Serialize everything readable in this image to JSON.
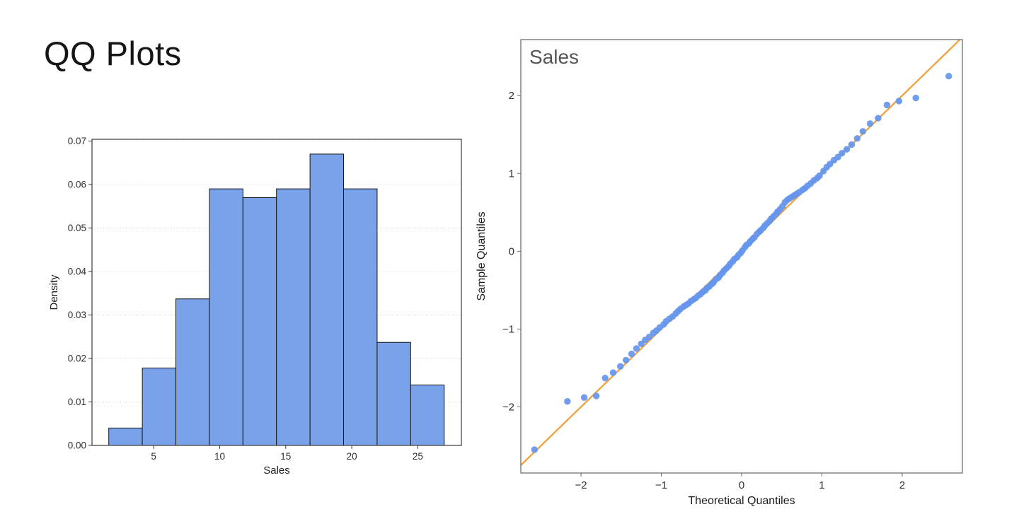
{
  "title": "QQ Plots",
  "chart_data": [
    {
      "type": "bar",
      "name": "sales-density-histogram",
      "xlabel": "Sales",
      "ylabel": "Density",
      "xlim": [
        0.33,
        28.3
      ],
      "ylim": [
        0,
        0.0704
      ],
      "xticks": [
        5,
        10,
        15,
        20,
        25
      ],
      "yticks": [
        0,
        0.01,
        0.02,
        0.03,
        0.04,
        0.05,
        0.06,
        0.07
      ],
      "bin_edges": [
        1.6,
        4.14,
        6.68,
        9.22,
        11.76,
        14.3,
        16.84,
        19.38,
        21.92,
        24.46,
        27.0
      ],
      "densities": [
        0.004,
        0.0178,
        0.0337,
        0.059,
        0.057,
        0.059,
        0.067,
        0.059,
        0.0237,
        0.0139
      ],
      "grid": "dotted-horizontal",
      "colors": {
        "bar_fill": "#7aa2e8",
        "bar_edge": "#151515",
        "spine": "#3a3a3a",
        "grid": "#c8c8c8"
      }
    },
    {
      "type": "scatter",
      "name": "sales-qq-plot",
      "inner_title": "Sales",
      "xlabel": "Theoretical Quantiles",
      "ylabel": "Sample Quantiles",
      "xlim": [
        -2.75,
        2.75
      ],
      "ylim": [
        -2.85,
        2.72
      ],
      "xticks": [
        -2,
        -1,
        0,
        1,
        2
      ],
      "yticks": [
        -2,
        -1,
        0,
        1,
        2
      ],
      "line": {
        "slope": 1,
        "intercept": 0
      },
      "legend": "none",
      "grid": "off",
      "colors": {
        "point": "#6495ED",
        "line": "#EFA23F",
        "spine": "#6f6f6f"
      },
      "points": [
        [
          -2.58,
          -2.55
        ],
        [
          -2.17,
          -1.93
        ],
        [
          -1.96,
          -1.88
        ],
        [
          -1.81,
          -1.86
        ],
        [
          -1.7,
          -1.63
        ],
        [
          -1.6,
          -1.56
        ],
        [
          -1.51,
          -1.48
        ],
        [
          -1.44,
          -1.4
        ],
        [
          -1.37,
          -1.32
        ],
        [
          -1.31,
          -1.25
        ],
        [
          -1.25,
          -1.19
        ],
        [
          -1.2,
          -1.14
        ],
        [
          -1.15,
          -1.1
        ],
        [
          -1.1,
          -1.05
        ],
        [
          -1.06,
          -1.02
        ],
        [
          -1.02,
          -0.98
        ],
        [
          -0.97,
          -0.94
        ],
        [
          -0.94,
          -0.9
        ],
        [
          -0.9,
          -0.87
        ],
        [
          -0.86,
          -0.84
        ],
        [
          -0.82,
          -0.8
        ],
        [
          -0.79,
          -0.77
        ],
        [
          -0.76,
          -0.74
        ],
        [
          -0.72,
          -0.71
        ],
        [
          -0.69,
          -0.69
        ],
        [
          -0.66,
          -0.67
        ],
        [
          -0.63,
          -0.64
        ],
        [
          -0.6,
          -0.62
        ],
        [
          -0.57,
          -0.6
        ],
        [
          -0.54,
          -0.57
        ],
        [
          -0.51,
          -0.55
        ],
        [
          -0.48,
          -0.52
        ],
        [
          -0.45,
          -0.5
        ],
        [
          -0.43,
          -0.47
        ],
        [
          -0.4,
          -0.45
        ],
        [
          -0.37,
          -0.42
        ],
        [
          -0.35,
          -0.4
        ],
        [
          -0.32,
          -0.36
        ],
        [
          -0.29,
          -0.34
        ],
        [
          -0.27,
          -0.31
        ],
        [
          -0.24,
          -0.28
        ],
        [
          -0.22,
          -0.25
        ],
        [
          -0.19,
          -0.22
        ],
        [
          -0.16,
          -0.19
        ],
        [
          -0.14,
          -0.16
        ],
        [
          -0.11,
          -0.13
        ],
        [
          -0.09,
          -0.1
        ],
        [
          -0.06,
          -0.08
        ],
        [
          -0.04,
          -0.05
        ],
        [
          -0.01,
          -0.02
        ],
        [
          0.01,
          0.01
        ],
        [
          0.04,
          0.05
        ],
        [
          0.06,
          0.08
        ],
        [
          0.09,
          0.1
        ],
        [
          0.11,
          0.13
        ],
        [
          0.14,
          0.16
        ],
        [
          0.16,
          0.18
        ],
        [
          0.19,
          0.22
        ],
        [
          0.22,
          0.25
        ],
        [
          0.24,
          0.27
        ],
        [
          0.27,
          0.3
        ],
        [
          0.29,
          0.33
        ],
        [
          0.32,
          0.36
        ],
        [
          0.35,
          0.39
        ],
        [
          0.37,
          0.42
        ],
        [
          0.4,
          0.45
        ],
        [
          0.43,
          0.48
        ],
        [
          0.45,
          0.51
        ],
        [
          0.48,
          0.54
        ],
        [
          0.51,
          0.58
        ],
        [
          0.54,
          0.63
        ],
        [
          0.57,
          0.66
        ],
        [
          0.6,
          0.68
        ],
        [
          0.63,
          0.7
        ],
        [
          0.66,
          0.72
        ],
        [
          0.69,
          0.74
        ],
        [
          0.72,
          0.76
        ],
        [
          0.76,
          0.79
        ],
        [
          0.79,
          0.81
        ],
        [
          0.82,
          0.84
        ],
        [
          0.86,
          0.87
        ],
        [
          0.9,
          0.91
        ],
        [
          0.94,
          0.94
        ],
        [
          0.97,
          0.97
        ],
        [
          1.02,
          1.03
        ],
        [
          1.06,
          1.08
        ],
        [
          1.1,
          1.12
        ],
        [
          1.15,
          1.17
        ],
        [
          1.2,
          1.21
        ],
        [
          1.25,
          1.26
        ],
        [
          1.31,
          1.31
        ],
        [
          1.37,
          1.37
        ],
        [
          1.44,
          1.45
        ],
        [
          1.51,
          1.54
        ],
        [
          1.6,
          1.64
        ],
        [
          1.7,
          1.71
        ],
        [
          1.81,
          1.88
        ],
        [
          1.96,
          1.93
        ],
        [
          2.17,
          1.97
        ],
        [
          2.58,
          2.25
        ]
      ]
    }
  ]
}
